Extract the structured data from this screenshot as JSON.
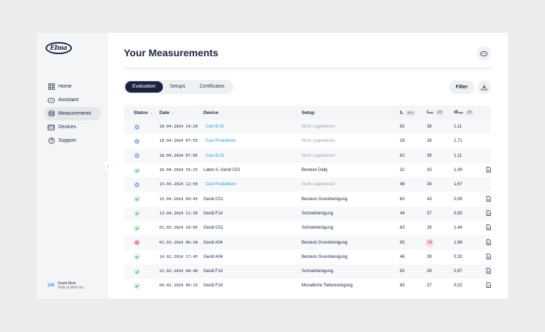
{
  "logo": {
    "text": "Elma"
  },
  "sidebar": {
    "items": [
      {
        "label": "Home",
        "icon": "grid-icon",
        "active": false
      },
      {
        "label": "Assistant",
        "icon": "chat-icon",
        "active": false
      },
      {
        "label": "Measurements",
        "icon": "database-icon",
        "active": true
      },
      {
        "label": "Devices",
        "icon": "device-icon",
        "active": false
      },
      {
        "label": "Support",
        "icon": "support-icon",
        "active": false
      }
    ],
    "collapse_icon": "‹",
    "user": {
      "initials": "DM",
      "name": "David Mork",
      "company": "Holly & Mork Inc."
    }
  },
  "header": {
    "title_prefix": "Your ",
    "title_bold": "Measurements"
  },
  "tabs": [
    "Evaluation",
    "Setups",
    "Certificates"
  ],
  "active_tab": 0,
  "toolbar": {
    "filter_label": "Filter"
  },
  "table": {
    "columns": {
      "status": "Status",
      "status_sort": "↕",
      "date": "Date",
      "date_sort": "↓",
      "device": "Device",
      "setup": "Setup",
      "f": "fₛ",
      "f_unit": "kHz",
      "l": "Lₐᵥ",
      "l_unit": "dB",
      "dl": "dLₐᵥ",
      "dl_unit": "dB"
    },
    "rows": [
      {
        "status": "pending",
        "date": "18.04.2024 14:20",
        "device": "Cavi B.01",
        "device_link": true,
        "setup": "Nicht zugewiesen",
        "setup_muted": true,
        "f": "62",
        "l": "38",
        "dl": "1,11",
        "l_bad": false,
        "doc": false
      },
      {
        "status": "pending",
        "date": "18.04.2024 07:55",
        "device": "Cavi Produktion",
        "device_link": true,
        "setup": "Nicht zugewiesen",
        "setup_muted": true,
        "f": "18",
        "l": "26",
        "dl": "1,71",
        "l_bad": false,
        "doc": false
      },
      {
        "status": "pending",
        "date": "18.04.2024 07:05",
        "device": "Cavi B.01",
        "device_link": true,
        "setup": "Nicht zugewiesen",
        "setup_muted": true,
        "f": "62",
        "l": "38",
        "dl": "1,11",
        "l_bad": false,
        "doc": false
      },
      {
        "status": "ok",
        "date": "16.04.2024 15:15",
        "device": "Labor A. Gerät C01",
        "device_link": false,
        "setup": "Besteck Daily",
        "setup_muted": false,
        "f": "32",
        "l": "33",
        "dl": "1,49",
        "l_bad": false,
        "doc": true
      },
      {
        "status": "pending",
        "date": "15.04.2024 12:50",
        "device": "Cavi Produktion",
        "device_link": true,
        "setup": "Nicht zugewiesen",
        "setup_muted": true,
        "f": "48",
        "l": "34",
        "dl": "1,67",
        "l_bad": false,
        "doc": false
      },
      {
        "status": "ok",
        "date": "15.04.2024 09:45",
        "device": "Gerät C01",
        "device_link": false,
        "setup": "Besteck Grundreinigung",
        "setup_muted": false,
        "f": "60",
        "l": "43",
        "dl": "0,06",
        "l_bad": false,
        "doc": true
      },
      {
        "status": "ok",
        "date": "13.04.2024 11:30",
        "device": "Gerät F14",
        "device_link": false,
        "setup": "Schnellreinigung",
        "setup_muted": false,
        "f": "44",
        "l": "37",
        "dl": "0,93",
        "l_bad": false,
        "doc": true
      },
      {
        "status": "ok",
        "date": "01.03.2024 10:05",
        "device": "Gerät C01",
        "device_link": false,
        "setup": "Schnellreinigung",
        "setup_muted": false,
        "f": "63",
        "l": "28",
        "dl": "1,44",
        "l_bad": false,
        "doc": true
      },
      {
        "status": "fail",
        "date": "01.03.2024 06:30",
        "device": "Gerät A04",
        "device_link": false,
        "setup": "Besteck Grundreinigung",
        "setup_muted": false,
        "f": "95",
        "l": "38",
        "dl": "1,98",
        "l_bad": true,
        "doc": true
      },
      {
        "status": "ok",
        "date": "14.02.2024 17:45",
        "device": "Gerät A04",
        "device_link": false,
        "setup": "Besteck Grundreinigung",
        "setup_muted": false,
        "f": "46",
        "l": "39",
        "dl": "0,33",
        "l_bad": false,
        "doc": true
      },
      {
        "status": "ok",
        "date": "21.02.2024 08:40",
        "device": "Gerät F14",
        "device_link": false,
        "setup": "Schnellreinigung",
        "setup_muted": false,
        "f": "92",
        "l": "39",
        "dl": "0,97",
        "l_bad": false,
        "doc": true
      },
      {
        "status": "ok",
        "date": "09.02.2024 06:15",
        "device": "Gerät F14",
        "device_link": false,
        "setup": "Monatliche Tiefenreinigung",
        "setup_muted": false,
        "f": "83",
        "l": "27",
        "dl": "0,02",
        "l_bad": false,
        "doc": true
      }
    ]
  },
  "colors": {
    "primary": "#1c2340",
    "link": "#2f9ae0",
    "ok": "#3aa85a",
    "fail": "#d2455a",
    "pending": "#5b7fcb"
  }
}
